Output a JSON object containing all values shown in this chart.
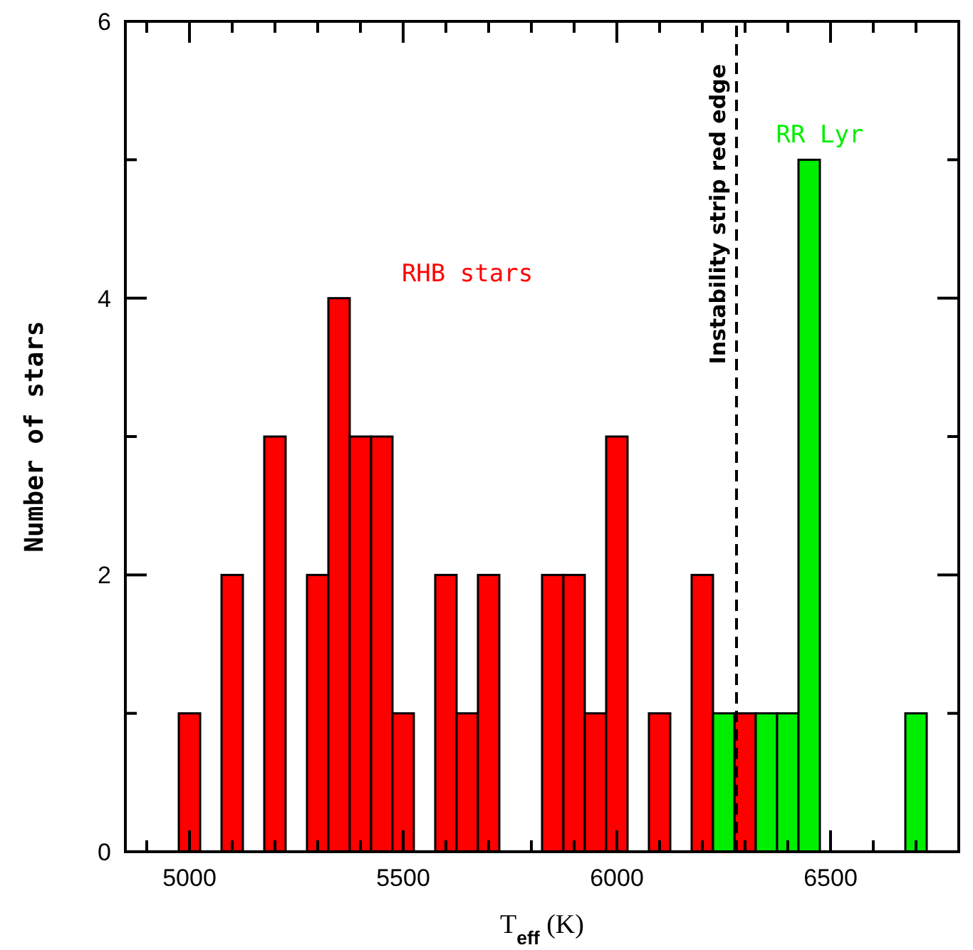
{
  "chart_data": {
    "type": "histogram",
    "xlabel": "T$_{eff}$ (K)",
    "ylabel": "Number of stars",
    "bins": [
      4975,
      5025,
      5075,
      5125,
      5175,
      5225,
      5275,
      5325,
      5375,
      5425,
      5475,
      5525,
      5575,
      5625,
      5675,
      5725,
      5775,
      5825,
      5875,
      5925,
      5975,
      6025,
      6075,
      6125,
      6175,
      6225,
      6275,
      6325,
      6375,
      6425,
      6475,
      6525,
      6575,
      6625,
      6675,
      6725
    ],
    "series": [
      {
        "name": "RHB stars",
        "color": "#ff0000",
        "values": [
          1,
          0,
          2,
          0,
          3,
          0,
          2,
          4,
          3,
          3,
          1,
          0,
          2,
          1,
          2,
          0,
          0,
          2,
          2,
          1,
          3,
          0,
          1,
          0,
          2,
          0,
          1,
          0,
          0,
          0,
          0,
          0,
          0,
          0,
          0
        ]
      },
      {
        "name": "RR Lyr",
        "color": "#00ee00",
        "values": [
          0,
          0,
          0,
          0,
          0,
          0,
          0,
          0,
          0,
          0,
          0,
          0,
          0,
          0,
          0,
          0,
          0,
          0,
          0,
          0,
          0,
          0,
          0,
          0,
          0,
          1,
          0,
          1,
          1,
          5,
          0,
          0,
          0,
          0,
          1
        ]
      }
    ],
    "xlim": [
      4850,
      6800
    ],
    "xticks": [
      {
        "value": 4900,
        "label": null
      },
      5000,
      {
        "value": 5100,
        "label": null
      },
      {
        "value": 5200,
        "label": null
      },
      {
        "value": 5300,
        "label": null
      },
      {
        "value": 5400,
        "label": null
      },
      5500,
      {
        "value": 5600,
        "label": null
      },
      {
        "value": 5700,
        "label": null
      },
      {
        "value": 5800,
        "label": null
      },
      {
        "value": 5900,
        "label": null
      },
      6000,
      {
        "value": 6100,
        "label": null
      },
      {
        "value": 6200,
        "label": null
      },
      {
        "value": 6300,
        "label": null
      },
      {
        "value": 6400,
        "label": null
      },
      6500,
      {
        "value": 6600,
        "label": null
      },
      {
        "value": 6700,
        "label": null
      }
    ],
    "ylim": [
      0,
      6
    ],
    "yticks": [
      0,
      {
        "value": 1,
        "label": null
      },
      2,
      {
        "value": 3,
        "label": null
      },
      4,
      {
        "value": 5,
        "label": null
      },
      6
    ],
    "ref_lines": [
      {
        "axis": "x",
        "value": 6280,
        "label": "Instability strip red edge",
        "line_style": "dashed",
        "color": "#000000"
      }
    ]
  }
}
